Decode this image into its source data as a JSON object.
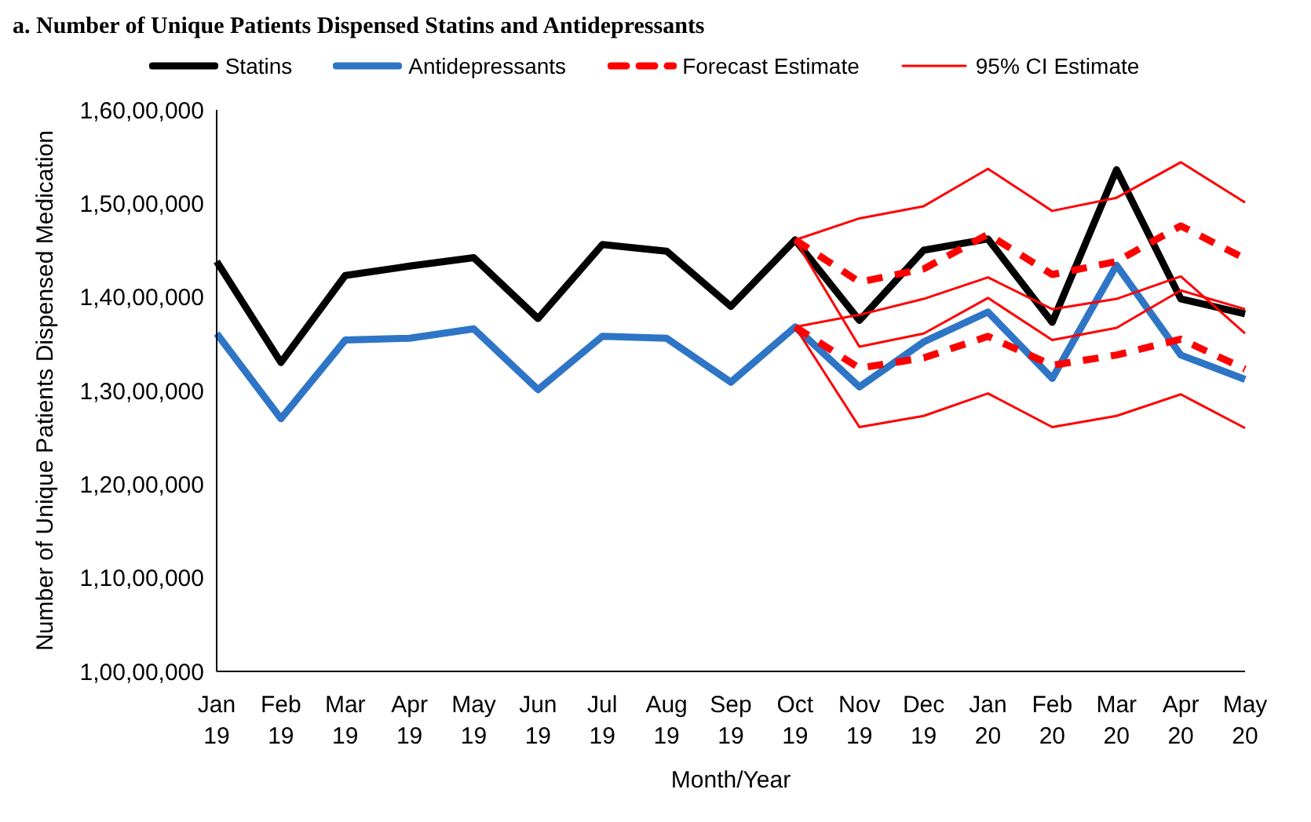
{
  "chart_data": {
    "type": "line",
    "title": "a. Number of Unique Patients Dispensed Statins and Antidepressants",
    "xlabel": "Month/Year",
    "ylabel": "Number of Unique Patients Dispensed Medication",
    "categories": [
      "Jan 19",
      "Feb 19",
      "Mar 19",
      "Apr 19",
      "May 19",
      "Jun 19",
      "Jul 19",
      "Aug 19",
      "Sep 19",
      "Oct 19",
      "Nov 19",
      "Dec 19",
      "Jan 20",
      "Feb 20",
      "Mar 20",
      "Apr 20",
      "May 20"
    ],
    "series": [
      {
        "name": "Statins",
        "color": "#000000",
        "line_style": "solid",
        "values": [
          14380000,
          13300000,
          14230000,
          14330000,
          14420000,
          13770000,
          14560000,
          14490000,
          13900000,
          14610000,
          13750000,
          14500000,
          14620000,
          13730000,
          15360000,
          13980000,
          13820000
        ]
      },
      {
        "name": "Antidepressants",
        "color": "#2e75c6",
        "line_style": "solid",
        "values": [
          13610000,
          12700000,
          13540000,
          13560000,
          13660000,
          13010000,
          13580000,
          13560000,
          13090000,
          13680000,
          13040000,
          13520000,
          13840000,
          13130000,
          14340000,
          13380000,
          13120000
        ]
      },
      {
        "name": "Forecast Estimate",
        "color": "#ff0000",
        "line_style": "dashed",
        "values": [
          null,
          null,
          null,
          null,
          null,
          null,
          null,
          null,
          null,
          14610000,
          14160000,
          14300000,
          14670000,
          14240000,
          14380000,
          14760000,
          14410000
        ]
      },
      {
        "color": "#ff0000",
        "line_style": "dashed",
        "values": [
          null,
          null,
          null,
          null,
          null,
          null,
          null,
          null,
          null,
          13680000,
          13240000,
          13350000,
          13580000,
          13270000,
          13380000,
          13550000,
          13230000
        ]
      },
      {
        "name": "95% CI Estimate",
        "color": "#ff0000",
        "line_style": "solid",
        "values": [
          null,
          null,
          null,
          null,
          null,
          null,
          null,
          null,
          null,
          14610000,
          14840000,
          14970000,
          15370000,
          14920000,
          15060000,
          15440000,
          15010000
        ]
      },
      {
        "color": "#ff0000",
        "line_style": "solid",
        "values": [
          null,
          null,
          null,
          null,
          null,
          null,
          null,
          null,
          null,
          14610000,
          13470000,
          13610000,
          13990000,
          13540000,
          13670000,
          14070000,
          13870000
        ]
      },
      {
        "color": "#ff0000",
        "line_style": "solid",
        "values": [
          null,
          null,
          null,
          null,
          null,
          null,
          null,
          null,
          null,
          13680000,
          13810000,
          13980000,
          14210000,
          13870000,
          13980000,
          14220000,
          13610000
        ]
      },
      {
        "color": "#ff0000",
        "line_style": "solid",
        "values": [
          null,
          null,
          null,
          null,
          null,
          null,
          null,
          null,
          null,
          13680000,
          12610000,
          12730000,
          12970000,
          12610000,
          12730000,
          12960000,
          12600000
        ]
      }
    ],
    "ylim": [
      10000000,
      16000000
    ],
    "yticks": [
      {
        "value": 10000000,
        "label": "1,00,00,000"
      },
      {
        "value": 11000000,
        "label": "1,10,00,000"
      },
      {
        "value": 12000000,
        "label": "1,20,00,000"
      },
      {
        "value": 13000000,
        "label": "1,30,00,000"
      },
      {
        "value": 14000000,
        "label": "1,40,00,000"
      },
      {
        "value": 15000000,
        "label": "1,50,00,000"
      },
      {
        "value": 16000000,
        "label": "1,60,00,000"
      }
    ],
    "legend": "top",
    "grid": false,
    "marker": "none"
  }
}
